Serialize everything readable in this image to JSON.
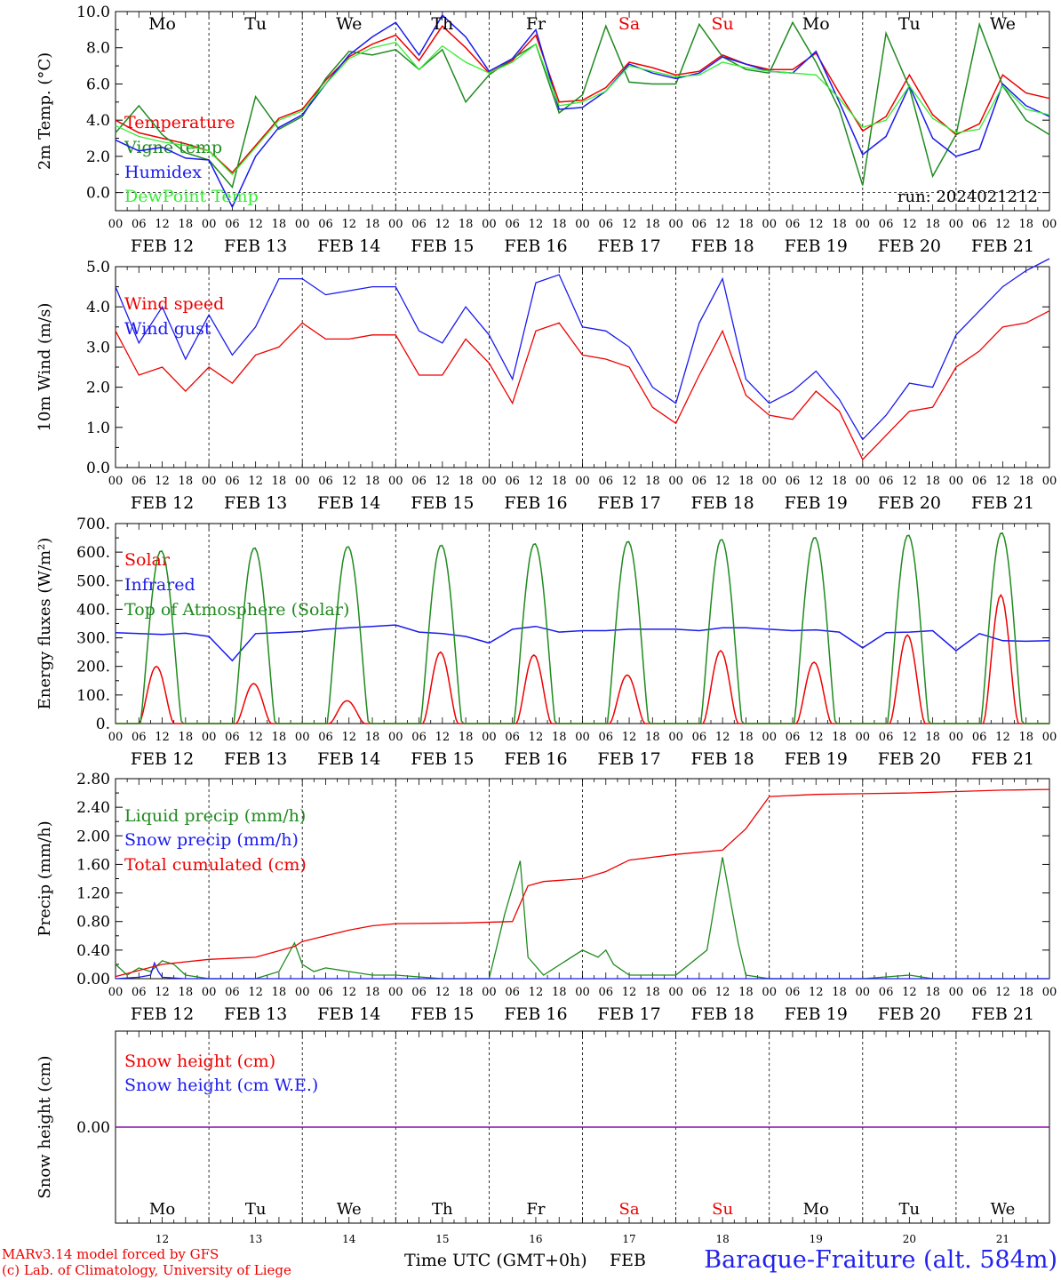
{
  "run_label": "run: 2024021212",
  "credit_lines": [
    "MARv3.14 model forced by GFS",
    "(c) Lab. of Climatology, University of Liege"
  ],
  "xlabel": "Time UTC (GMT+0h)",
  "month_label": "FEB",
  "station_title": "Baraque-Fraiture (alt. 584m)",
  "day_names": [
    "Mo",
    "Tu",
    "We",
    "Th",
    "Fr",
    "Sa",
    "Su",
    "Mo",
    "Tu",
    "We"
  ],
  "date_labels": [
    "FEB 12",
    "FEB 13",
    "FEB 14",
    "FEB 15",
    "FEB 16",
    "FEB 17",
    "FEB 18",
    "FEB 19",
    "FEB 20",
    "FEB 21"
  ],
  "day_numbers": [
    "12",
    "13",
    "14",
    "15",
    "16",
    "17",
    "18",
    "19",
    "20",
    "21"
  ],
  "hour_ticks": [
    "00",
    "06",
    "12",
    "18"
  ],
  "colors": {
    "red": "#ee0000",
    "green": "#1f8a1f",
    "blue": "#1a1aee",
    "lightgreen": "#33ee33",
    "purple": "#8800aa",
    "weekday": "#000000",
    "weekend": "#ee0000"
  },
  "chart_data": [
    {
      "type": "line",
      "ylabel": "2m Temp. (°C)",
      "ylim": [
        -1,
        10
      ],
      "yticks": [
        "0.0",
        "2.0",
        "4.0",
        "6.0",
        "8.0",
        "10.0"
      ],
      "hours": [
        0,
        6,
        12,
        18,
        24,
        30,
        36,
        42,
        48,
        54,
        60,
        66,
        72,
        78,
        84,
        90,
        96,
        102,
        108,
        114,
        120,
        126,
        132,
        138,
        144,
        150,
        156,
        162,
        168,
        174,
        180,
        186,
        192,
        198,
        204,
        210,
        216,
        222,
        228,
        234,
        240
      ],
      "series": [
        {
          "name": "Temperature",
          "color": "red",
          "values": [
            4.0,
            3.3,
            3.0,
            2.7,
            2.3,
            1.1,
            2.6,
            4.1,
            4.6,
            6.2,
            7.5,
            8.2,
            8.7,
            7.3,
            9.2,
            8.0,
            6.6,
            7.3,
            8.7,
            5.0,
            5.1,
            5.8,
            7.2,
            6.9,
            6.5,
            6.7,
            7.6,
            7.1,
            6.8,
            6.8,
            7.7,
            5.5,
            3.4,
            4.2,
            6.5,
            4.3,
            3.2,
            3.8,
            6.5,
            5.5,
            5.2
          ]
        },
        {
          "name": "Vigne temp",
          "color": "green",
          "values": [
            3.3,
            4.8,
            3.2,
            2.2,
            1.8,
            0.3,
            5.3,
            3.5,
            4.2,
            6.3,
            7.8,
            7.6,
            7.9,
            6.8,
            7.9,
            5.0,
            6.5,
            7.4,
            8.2,
            4.4,
            5.4,
            9.2,
            6.1,
            6.0,
            6.0,
            9.3,
            7.5,
            6.8,
            6.6,
            9.4,
            7.2,
            4.6,
            0.4,
            8.8,
            5.8,
            0.9,
            3.2,
            9.3,
            5.9,
            4.0,
            3.2
          ]
        },
        {
          "name": "Humidex",
          "color": "blue",
          "values": [
            2.9,
            2.3,
            2.5,
            1.9,
            1.8,
            -0.8,
            2.0,
            3.6,
            4.3,
            6.0,
            7.6,
            8.6,
            9.4,
            7.6,
            9.8,
            8.6,
            6.7,
            7.4,
            9.0,
            4.6,
            4.7,
            5.6,
            7.1,
            6.6,
            6.3,
            6.6,
            7.5,
            7.1,
            6.7,
            6.6,
            7.8,
            5.0,
            2.1,
            3.1,
            5.9,
            3.0,
            2.0,
            2.4,
            6.0,
            4.8,
            4.2
          ]
        },
        {
          "name": "DewPoint Temp",
          "color": "lightgreen",
          "values": [
            3.7,
            3.1,
            2.8,
            2.6,
            2.3,
            1.0,
            2.5,
            4.0,
            4.5,
            6.0,
            7.4,
            8.0,
            8.3,
            6.8,
            8.1,
            7.2,
            6.6,
            7.2,
            8.2,
            4.8,
            5.0,
            5.6,
            7.0,
            6.7,
            6.4,
            6.5,
            7.2,
            6.9,
            6.7,
            6.6,
            6.5,
            5.2,
            3.6,
            4.0,
            5.9,
            4.1,
            3.3,
            3.5,
            5.9,
            4.6,
            4.3
          ]
        }
      ]
    },
    {
      "type": "line",
      "ylabel": "10m Wind (m/s)",
      "ylim": [
        0,
        5
      ],
      "yticks": [
        "0.0",
        "1.0",
        "2.0",
        "3.0",
        "4.0",
        "5.0"
      ],
      "hours": [
        0,
        6,
        12,
        18,
        24,
        30,
        36,
        42,
        48,
        54,
        60,
        66,
        72,
        78,
        84,
        90,
        96,
        102,
        108,
        114,
        120,
        126,
        132,
        138,
        144,
        150,
        156,
        162,
        168,
        174,
        180,
        186,
        192,
        198,
        204,
        210,
        216,
        222,
        228,
        234,
        240
      ],
      "series": [
        {
          "name": "Wind speed",
          "color": "red",
          "values": [
            3.4,
            2.3,
            2.5,
            1.9,
            2.5,
            2.1,
            2.8,
            3.0,
            3.6,
            3.2,
            3.2,
            3.3,
            3.3,
            2.3,
            2.3,
            3.2,
            2.6,
            1.6,
            3.4,
            3.6,
            2.8,
            2.7,
            2.5,
            1.5,
            1.1,
            2.3,
            3.4,
            1.8,
            1.3,
            1.2,
            1.9,
            1.4,
            0.2,
            0.8,
            1.4,
            1.5,
            2.5,
            2.9,
            3.5,
            3.6,
            3.9
          ]
        },
        {
          "name": "Wind gust",
          "color": "blue",
          "values": [
            4.5,
            3.1,
            4.0,
            2.7,
            3.8,
            2.8,
            3.5,
            4.7,
            4.7,
            4.3,
            4.4,
            4.5,
            4.5,
            3.4,
            3.1,
            4.0,
            3.3,
            2.2,
            4.6,
            4.8,
            3.5,
            3.4,
            3.0,
            2.0,
            1.6,
            3.6,
            4.7,
            2.2,
            1.6,
            1.9,
            2.4,
            1.7,
            0.7,
            1.3,
            2.1,
            2.0,
            3.3,
            3.9,
            4.5,
            4.9,
            5.2
          ]
        }
      ]
    },
    {
      "type": "line",
      "ylabel": "Energy fluxes (W/m²)",
      "ylim": [
        0,
        700
      ],
      "yticks": [
        "0.",
        "100.",
        "200.",
        "300.",
        "400.",
        "500.",
        "600.",
        "700."
      ],
      "series": [
        {
          "name": "Solar",
          "color": "red",
          "peaks_hour": [
            10.5,
            35.5,
            59.5,
            83.5,
            107.5,
            131.5,
            155.5,
            179.5,
            203.5,
            227.5
          ],
          "peaks_value": [
            200,
            140,
            80,
            250,
            240,
            170,
            255,
            215,
            310,
            450
          ]
        },
        {
          "name": "Infrared",
          "color": "blue",
          "hours": [
            0,
            6,
            12,
            18,
            24,
            30,
            36,
            42,
            48,
            54,
            60,
            66,
            72,
            78,
            84,
            90,
            96,
            102,
            108,
            114,
            120,
            126,
            132,
            138,
            144,
            150,
            156,
            162,
            168,
            174,
            180,
            186,
            192,
            198,
            204,
            210,
            216,
            222,
            228,
            234,
            240
          ],
          "values": [
            318,
            315,
            312,
            316,
            305,
            220,
            315,
            318,
            322,
            330,
            335,
            340,
            345,
            320,
            315,
            305,
            282,
            330,
            340,
            320,
            325,
            325,
            330,
            330,
            330,
            325,
            335,
            335,
            330,
            325,
            328,
            320,
            265,
            318,
            320,
            325,
            255,
            315,
            290,
            288,
            290
          ]
        },
        {
          "name": "Top of Atmosphere (Solar)",
          "color": "green",
          "peaks_hour": [
            11.7,
            35.7,
            59.7,
            83.7,
            107.7,
            131.7,
            155.7,
            179.7,
            203.7,
            227.7
          ],
          "peaks_value": [
            605,
            615,
            620,
            625,
            630,
            638,
            645,
            652,
            660,
            668
          ]
        }
      ]
    },
    {
      "type": "line",
      "ylabel": "Precip (mm/h)",
      "ylim": [
        0,
        2.8
      ],
      "yticks": [
        "0.00",
        "0.40",
        "0.80",
        "1.20",
        "1.60",
        "2.00",
        "2.40",
        "2.80"
      ],
      "series": [
        {
          "name": "Liquid precip (mm/h)",
          "color": "green",
          "hours": [
            0,
            3,
            6,
            9,
            12,
            15,
            18,
            24,
            36,
            42,
            46,
            48,
            51,
            54,
            60,
            66,
            72,
            84,
            96,
            100,
            104,
            106,
            110,
            120,
            124,
            126,
            128,
            132,
            144,
            152,
            156,
            160,
            162,
            168,
            180,
            192,
            204,
            210,
            216,
            240
          ],
          "values": [
            0.2,
            0.05,
            0.15,
            0.1,
            0.25,
            0.2,
            0.05,
            0.0,
            0.0,
            0.1,
            0.5,
            0.2,
            0.1,
            0.15,
            0.1,
            0.05,
            0.05,
            0.0,
            0.0,
            0.9,
            1.65,
            0.3,
            0.05,
            0.4,
            0.3,
            0.4,
            0.2,
            0.05,
            0.05,
            0.4,
            1.7,
            0.5,
            0.05,
            0.0,
            0.0,
            0.0,
            0.05,
            0.0,
            0.0,
            0.0
          ]
        },
        {
          "name": "Snow precip (mm/h)",
          "color": "blue",
          "hours": [
            0,
            6,
            9,
            10,
            11,
            12,
            18,
            24,
            240
          ],
          "values": [
            0.0,
            0.02,
            0.05,
            0.22,
            0.1,
            0.02,
            0.0,
            0.0,
            0.0
          ]
        },
        {
          "name": "Total cumulated (cm)",
          "color": "red",
          "hours": [
            0,
            12,
            24,
            36,
            46,
            48,
            54,
            60,
            66,
            72,
            90,
            102,
            106,
            110,
            120,
            126,
            132,
            144,
            156,
            162,
            168,
            180,
            192,
            204,
            216,
            228,
            240
          ],
          "values": [
            0.03,
            0.2,
            0.27,
            0.3,
            0.45,
            0.52,
            0.6,
            0.68,
            0.74,
            0.77,
            0.78,
            0.8,
            1.3,
            1.36,
            1.4,
            1.5,
            1.66,
            1.74,
            1.8,
            2.1,
            2.55,
            2.58,
            2.59,
            2.6,
            2.62,
            2.64,
            2.65
          ]
        }
      ]
    },
    {
      "type": "line",
      "ylabel": "Snow height (cm)",
      "ylim": [
        -1,
        1
      ],
      "yticks": [
        "0.00"
      ],
      "series": [
        {
          "name": "Snow height (cm)",
          "color": "red",
          "hours": [
            0,
            240
          ],
          "values": [
            0,
            0
          ]
        },
        {
          "name": "Snow height (cm W.E.)",
          "color": "blue",
          "hours": [
            0,
            240
          ],
          "values": [
            0,
            0
          ]
        }
      ]
    }
  ]
}
